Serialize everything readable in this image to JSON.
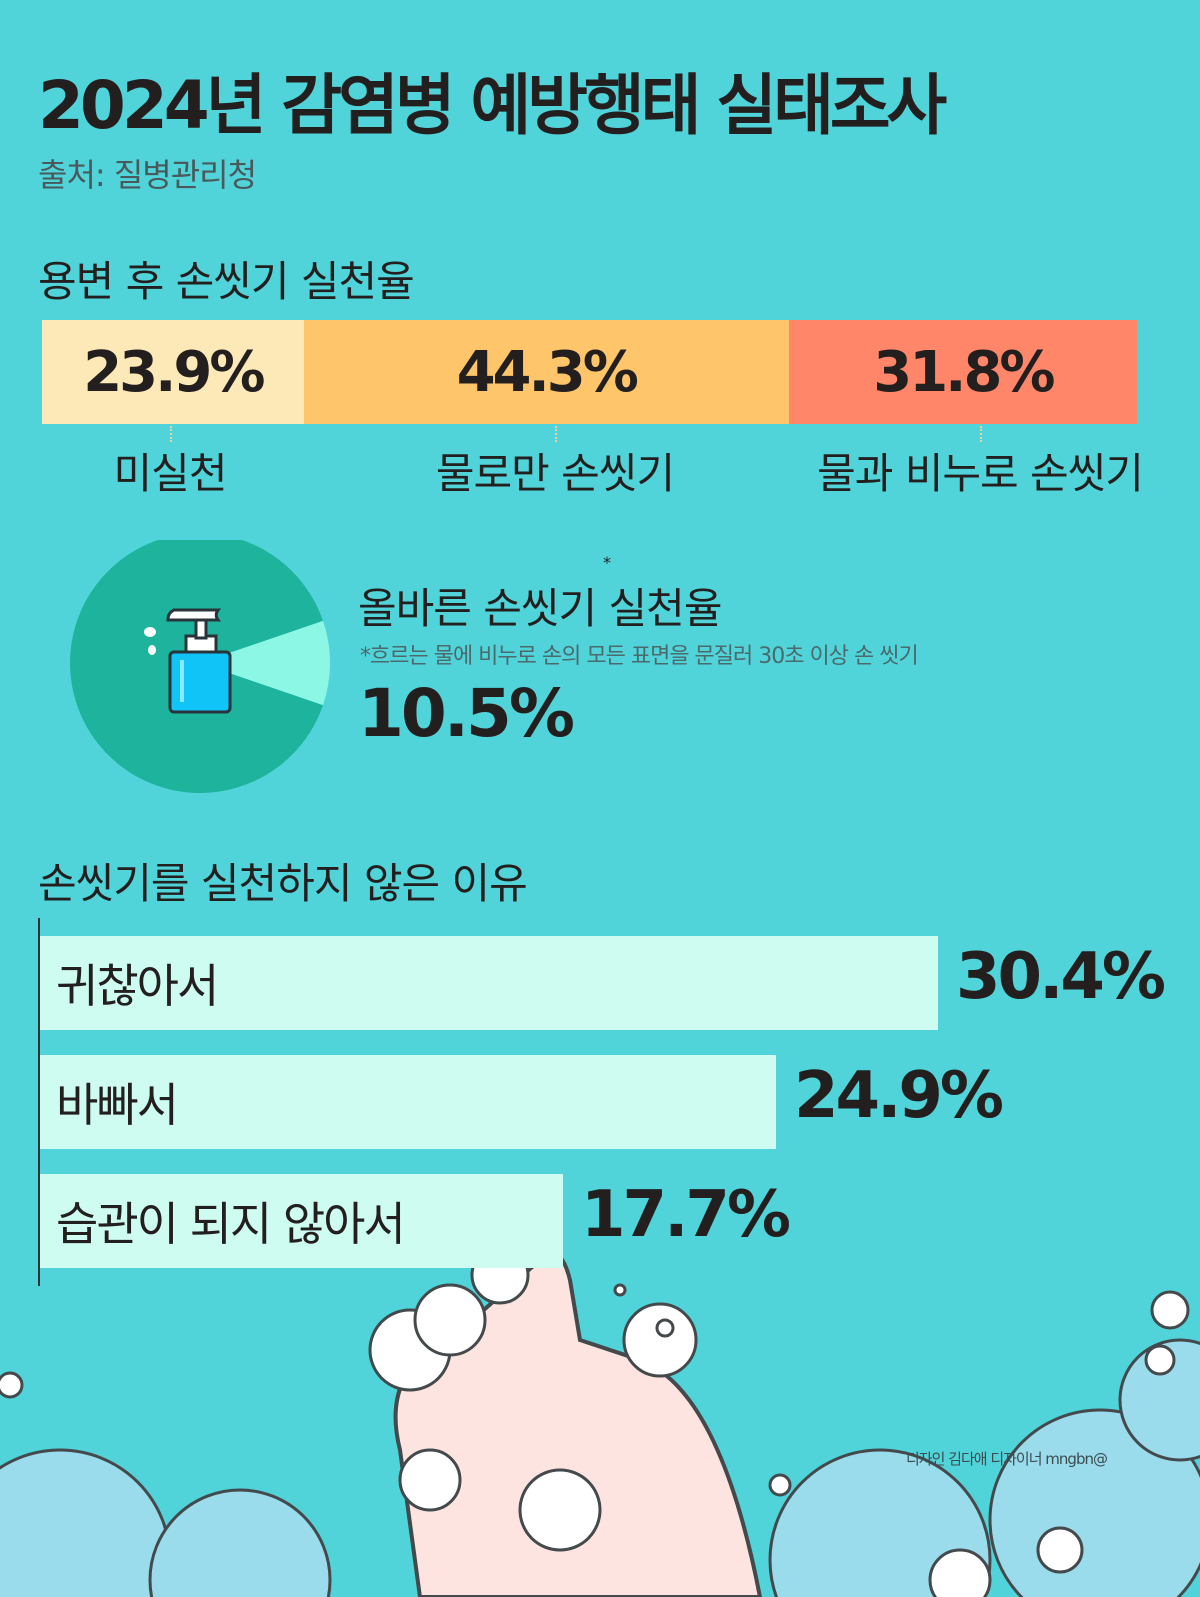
{
  "title": "2024년 감염병 예방행태 실태조사",
  "source": "출처: 질병관리청",
  "credit": "디자인 김다애 디자이너 mngbn@",
  "colors": {
    "background": "#50d4da",
    "not_practiced": "#fde9b8",
    "water_only": "#ffc56a",
    "water_soap": "#ff8668",
    "pie_main": "#1db39c",
    "pie_slice": "#8df7e6",
    "reason_bar": "#cffcf0"
  },
  "chart_data": [
    {
      "type": "bar",
      "stacked": true,
      "title": "용변 후 손씻기 실천율",
      "categories": [
        "미실천",
        "물로만 손씻기",
        "물과 비누로 손씻기"
      ],
      "values": [
        23.9,
        44.3,
        31.8
      ],
      "labels": [
        "23.9%",
        "44.3%",
        "31.8%"
      ]
    },
    {
      "type": "pie",
      "title": "올바른 손씻기 실천율",
      "title_mark": "*",
      "note": "*흐르는 물에 비누로 손의 모든 표면을 문질러 30초 이상 손 씻기",
      "values": [
        10.5,
        89.5
      ],
      "label": "10.5%",
      "icon": "soap-dispenser-icon"
    },
    {
      "type": "bar",
      "orientation": "horizontal",
      "title": "손씻기를 실천하지 않은 이유",
      "categories": [
        "귀찮아서",
        "바빠서",
        "습관이 되지 않아서"
      ],
      "values": [
        30.4,
        24.9,
        17.7
      ],
      "labels": [
        "30.4%",
        "24.9%",
        "17.7%"
      ]
    }
  ]
}
